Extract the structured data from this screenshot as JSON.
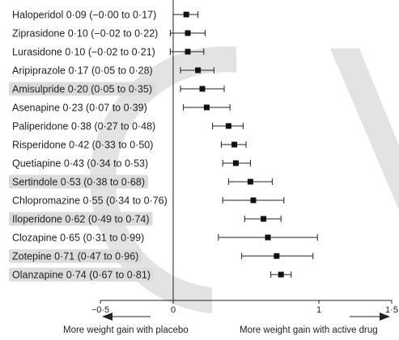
{
  "chart_data": {
    "type": "forest",
    "rows": [
      {
        "label": "Haloperidol 0·09 (−0·00 to 0·17)",
        "estimate": 0.09,
        "lower": 0.0,
        "upper": 0.17,
        "highlight": false
      },
      {
        "label": "Ziprasidone 0·10 (−0·02 to 0·22)",
        "estimate": 0.1,
        "lower": -0.02,
        "upper": 0.22,
        "highlight": false
      },
      {
        "label": "Lurasidone 0·10 (−0·02 to 0·21)",
        "estimate": 0.1,
        "lower": -0.02,
        "upper": 0.21,
        "highlight": false
      },
      {
        "label": "Aripiprazole 0·17 (0·05 to 0·28)",
        "estimate": 0.17,
        "lower": 0.05,
        "upper": 0.28,
        "highlight": false
      },
      {
        "label": "Amisulpride 0·20 (0·05 to 0·35)",
        "estimate": 0.2,
        "lower": 0.05,
        "upper": 0.35,
        "highlight": true
      },
      {
        "label": "Asenapine 0·23 (0·07 to 0·39)",
        "estimate": 0.23,
        "lower": 0.07,
        "upper": 0.39,
        "highlight": false
      },
      {
        "label": "Paliperidone 0·38 (0·27 to 0·48)",
        "estimate": 0.38,
        "lower": 0.27,
        "upper": 0.48,
        "highlight": false
      },
      {
        "label": "Risperidone 0·42 (0·33 to 0·50)",
        "estimate": 0.42,
        "lower": 0.33,
        "upper": 0.5,
        "highlight": false
      },
      {
        "label": "Quetiapine 0·43 (0·34 to 0·53)",
        "estimate": 0.43,
        "lower": 0.34,
        "upper": 0.53,
        "highlight": false
      },
      {
        "label": "Sertindole 0·53 (0·38 to 0·68)",
        "estimate": 0.53,
        "lower": 0.38,
        "upper": 0.68,
        "highlight": true
      },
      {
        "label": "Chlopromazine 0·55 (0·34 to 0·76)",
        "estimate": 0.55,
        "lower": 0.34,
        "upper": 0.76,
        "highlight": false
      },
      {
        "label": "Iloperidone 0·62 (0·49 to 0·74)",
        "estimate": 0.62,
        "lower": 0.49,
        "upper": 0.74,
        "highlight": true
      },
      {
        "label": "Clozapine 0·65 (0·31 to 0·99)",
        "estimate": 0.65,
        "lower": 0.31,
        "upper": 0.99,
        "highlight": false
      },
      {
        "label": "Zotepine 0·71 (0·47 to 0·96)",
        "estimate": 0.71,
        "lower": 0.47,
        "upper": 0.96,
        "highlight": true
      },
      {
        "label": "Olanzapine 0·74 (0·67 to 0·81)",
        "estimate": 0.74,
        "lower": 0.67,
        "upper": 0.81,
        "highlight": true
      }
    ],
    "xlim": [
      -0.5,
      1.5
    ],
    "ticks": [
      {
        "value": -0.5,
        "label": "−0·5"
      },
      {
        "value": 0,
        "label": "0"
      },
      {
        "value": 1,
        "label": "1"
      },
      {
        "value": 1.5,
        "label": "1·5"
      }
    ],
    "left_label": "More weight gain with placebo",
    "right_label": "More weight gain with active drug",
    "highlight_color": "#dcdcdc",
    "watermark_color": "#e3e3e3",
    "ink_color": "#222222"
  }
}
